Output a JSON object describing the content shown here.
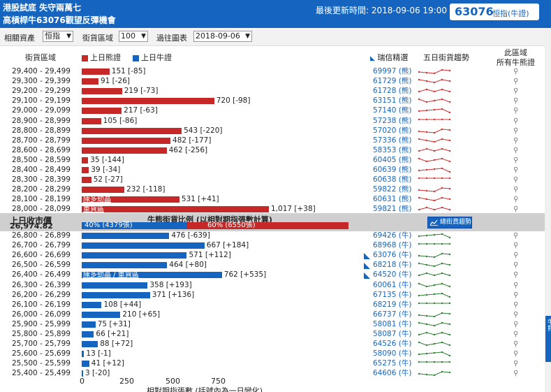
{
  "header": {
    "line1": "港股試底 失守兩萬七",
    "line2": "高槓桿牛63076觀望反彈機會",
    "updated": "最後更新時間: 2018-09-06 19:00",
    "code": "63076",
    "code_name": "恒指(牛證)"
  },
  "filters": {
    "asset_label": "相關資產",
    "asset_value": "恒指",
    "range_label": "街貨區域",
    "range_value": "100",
    "chart_label": "過往圖表",
    "chart_value": "2018-09-06"
  },
  "columns": {
    "range": "街貨區域",
    "bear_legend": "上日熊證",
    "bull_legend": "上日牛證",
    "pick": "瑞信精選",
    "trend5": "五日街貨趨勢",
    "all_line1": "此區域",
    "all_line2": "所有牛熊證"
  },
  "colors": {
    "bear": "#c62828",
    "bull": "#1565c0",
    "trend_red": "#d32f2f",
    "trend_green": "#2e7d32"
  },
  "bear_rows": [
    {
      "range": "29,400 - 29,499",
      "value": 151,
      "label": "151 [-85]",
      "code": "69997 (熊)"
    },
    {
      "range": "29,300 - 29,399",
      "value": 91,
      "label": "91 [-26]",
      "code": "61729 (熊)"
    },
    {
      "range": "29,200 - 29,299",
      "value": 219,
      "label": "219 [-73]",
      "code": "61728 (熊)"
    },
    {
      "range": "29,100 - 29,199",
      "value": 720,
      "label": "720 [-98]",
      "code": "63151 (熊)"
    },
    {
      "range": "29,000 - 29,099",
      "value": 217,
      "label": "217 [-63]",
      "code": "57140 (熊)"
    },
    {
      "range": "28,900 - 28,999",
      "value": 105,
      "label": "105 [-86]",
      "code": "57238 (熊)"
    },
    {
      "range": "28,800 - 28,899",
      "value": 543,
      "label": "543 [-220]",
      "code": "57020 (熊)"
    },
    {
      "range": "28,700 - 28,799",
      "value": 482,
      "label": "482 [-177]",
      "code": "57336 (熊)"
    },
    {
      "range": "28,600 - 28,699",
      "value": 462,
      "label": "462 [-256]",
      "code": "58353 (熊)"
    },
    {
      "range": "28,500 - 28,599",
      "value": 35,
      "label": "35 [-144]",
      "code": "60405 (熊)"
    },
    {
      "range": "28,400 - 28,499",
      "value": 39,
      "label": "39 [-34]",
      "code": "60639 (熊)"
    },
    {
      "range": "28,300 - 28,399",
      "value": 52,
      "label": "52 [-27]",
      "code": "60638 (熊)"
    },
    {
      "range": "28,200 - 28,299",
      "value": 232,
      "label": "232 [-118]",
      "code": "59822 (熊)"
    },
    {
      "range": "28,100 - 28,199",
      "value": 531,
      "label": "531 [+41]",
      "code": "60631 (熊)",
      "note": "陳多勁晶"
    },
    {
      "range": "28,000 - 28,099",
      "value": 1017,
      "label": "1,017 [+38]",
      "code": "59821 (熊)",
      "note": "重貨區"
    }
  ],
  "middle": {
    "close_label": "上日收市價",
    "close_value": "26,974.82",
    "ratio_title": "牛熊街貨比例 (以相對期指張數計算)",
    "bull_pct": "40% (4379張)",
    "bear_pct": "60% (6550張)",
    "trend_button": "總街貨趨勢"
  },
  "bull_rows": [
    {
      "range": "26,800 - 26,899",
      "value": 476,
      "label": "476 [-639]",
      "code": "69426 (牛)"
    },
    {
      "range": "26,700 - 26,799",
      "value": 667,
      "label": "667 [+184]",
      "code": "68968 (牛)"
    },
    {
      "range": "26,600 - 26,699",
      "value": 571,
      "label": "571 [+112]",
      "code": "63076 (牛)",
      "pick": true
    },
    {
      "range": "26,500 - 26,599",
      "value": 464,
      "label": "464 [+80]",
      "code": "68218 (牛)",
      "pick": true
    },
    {
      "range": "26,400 - 26,499",
      "value": 762,
      "label": "762 [+535]",
      "code": "64520 (牛)",
      "pick": true,
      "note": "陳多勁晶 / 重貨區"
    },
    {
      "range": "26,300 - 26,399",
      "value": 358,
      "label": "358 [+193]",
      "code": "60061 (牛)"
    },
    {
      "range": "26,200 - 26,299",
      "value": 371,
      "label": "371 [+136]",
      "code": "67135 (牛)"
    },
    {
      "range": "26,100 - 26,199",
      "value": 108,
      "label": "108 [+44]",
      "code": "68219 (牛)"
    },
    {
      "range": "26,000 - 26,099",
      "value": 210,
      "label": "210 [+65]",
      "code": "66737 (牛)"
    },
    {
      "range": "25,900 - 25,999",
      "value": 75,
      "label": "75 [+31]",
      "code": "58081 (牛)"
    },
    {
      "range": "25,800 - 25,899",
      "value": 66,
      "label": "66 [+21]",
      "code": "58087 (牛)"
    },
    {
      "range": "25,700 - 25,799",
      "value": 88,
      "label": "88 [+72]",
      "code": "64526 (牛)"
    },
    {
      "range": "25,600 - 25,699",
      "value": 13,
      "label": "13 [-1]",
      "code": "58090 (牛)"
    },
    {
      "range": "25,500 - 25,599",
      "value": 41,
      "label": "41 [+12]",
      "code": "65275 (牛)"
    },
    {
      "range": "25,400 - 25,499",
      "value": 3,
      "label": "3 [-20]",
      "code": "64606 (牛)"
    }
  ],
  "axis": {
    "ticks": [
      "0",
      "250",
      "500",
      "750"
    ],
    "tick_values": [
      0,
      250,
      500,
      750
    ],
    "max": 1017,
    "title": "相對期指張數 (括號內為一日變化)"
  },
  "side_tab": "牛熊"
}
